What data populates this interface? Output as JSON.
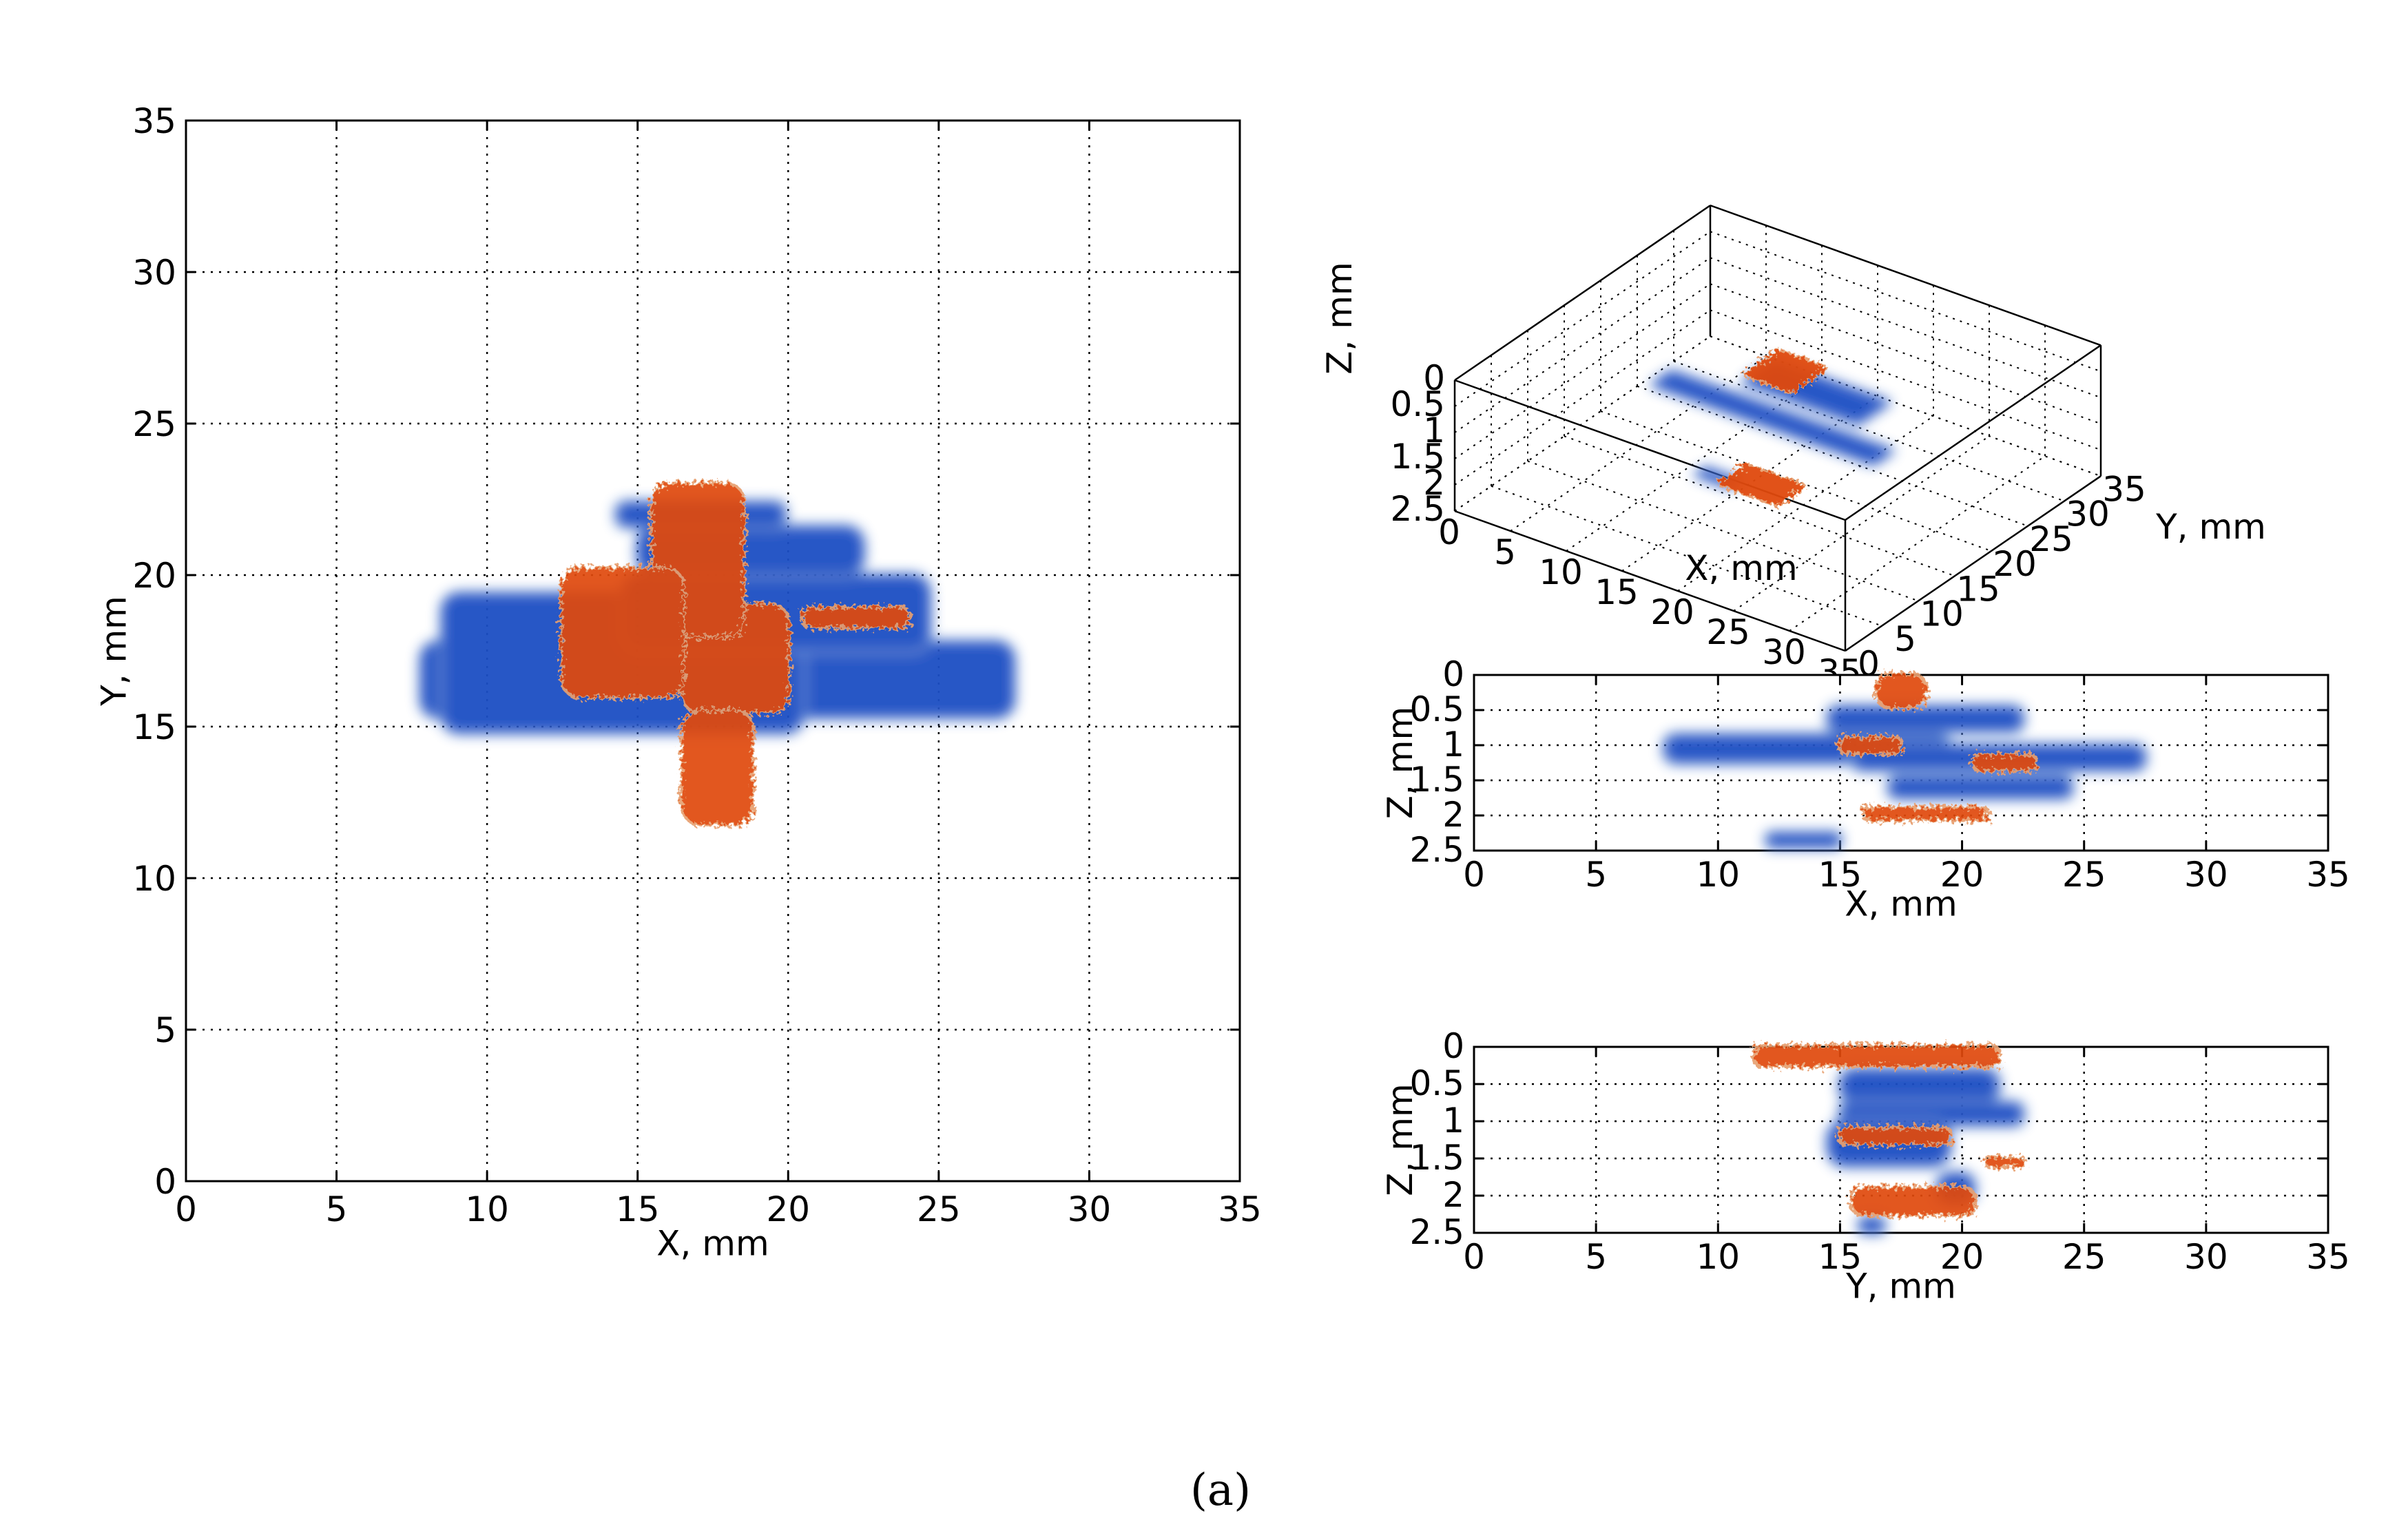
{
  "figure": {
    "caption": "(a)"
  },
  "colors": {
    "blue": "#1a4fc4",
    "blue_light": "#6f9ad9",
    "orange": "#e04a10",
    "orange_light": "#e8a070"
  },
  "chart_data": [
    {
      "id": "xy",
      "type": "heatmap",
      "title": "",
      "xlabel": "X, mm",
      "ylabel": "Y, mm",
      "xlim": [
        0,
        35
      ],
      "ylim": [
        0,
        35
      ],
      "xticks": [
        "0",
        "5",
        "10",
        "15",
        "20",
        "25",
        "30",
        "35"
      ],
      "yticks": [
        "0",
        "5",
        "10",
        "15",
        "20",
        "25",
        "30",
        "35"
      ],
      "grid": true,
      "series": [
        {
          "color": "blue",
          "regions": [
            {
              "x": [
                7.8,
                27.5
              ],
              "y": [
                15.3,
                17.8
              ]
            },
            {
              "x": [
                8.5,
                20.5
              ],
              "y": [
                14.8,
                19.4
              ]
            },
            {
              "x": [
                14.5,
                24.7
              ],
              "y": [
                17.5,
                20.0
              ]
            },
            {
              "x": [
                15.0,
                22.5
              ],
              "y": [
                20.0,
                21.6
              ]
            },
            {
              "x": [
                14.3,
                19.9
              ],
              "y": [
                21.6,
                22.4
              ]
            }
          ]
        },
        {
          "color": "orange",
          "regions": [
            {
              "x": [
                16.5,
                20.0
              ],
              "y": [
                15.5,
                19.0
              ]
            },
            {
              "x": [
                15.5,
                18.5
              ],
              "y": [
                18.0,
                23.0
              ]
            },
            {
              "x": [
                16.5,
                18.8
              ],
              "y": [
                11.8,
                15.5
              ]
            },
            {
              "x": [
                12.5,
                16.5
              ],
              "y": [
                16.0,
                20.2
              ]
            },
            {
              "x": [
                20.5,
                24.0
              ],
              "y": [
                18.3,
                18.9
              ]
            }
          ]
        }
      ]
    },
    {
      "id": "xyz-3d",
      "type": "scatter",
      "title": "",
      "xlabel": "X, mm",
      "ylabel": "Y, mm",
      "zlabel": "Z, mm",
      "xlim": [
        0,
        35
      ],
      "ylim": [
        0,
        35
      ],
      "zlim": [
        0,
        2.5
      ],
      "xticks": [
        "0",
        "5",
        "10",
        "15",
        "20",
        "25",
        "30",
        "35"
      ],
      "yticks": [
        "0",
        "5",
        "10",
        "15",
        "20",
        "25",
        "30",
        "35"
      ],
      "zticks": [
        "0",
        "0.5",
        "1",
        "1.5",
        "2",
        "2.5"
      ],
      "grid": true,
      "series": [
        {
          "color": "blue",
          "regions": [
            {
              "x": [
                7.8,
                27.5
              ],
              "y": [
                15.3,
                17.8
              ],
              "z": [
                0.8,
                1.1
              ]
            },
            {
              "x": [
                14.5,
                24.7
              ],
              "y": [
                17.5,
                21.6
              ],
              "z": [
                0.4,
                0.8
              ]
            },
            {
              "x": [
                12.0,
                15.0
              ],
              "y": [
                14.8,
                16.0
              ],
              "z": [
                2.2,
                2.4
              ]
            }
          ]
        },
        {
          "color": "orange",
          "regions": [
            {
              "x": [
                16.0,
                20.0
              ],
              "y": [
                15.5,
                20.0
              ],
              "z": [
                0.0,
                0.3
              ]
            },
            {
              "x": [
                16.0,
                21.0
              ],
              "y": [
                12.0,
                15.5
              ],
              "z": [
                1.8,
                2.0
              ]
            }
          ]
        }
      ]
    },
    {
      "id": "xz",
      "type": "heatmap",
      "title": "",
      "xlabel": "X, mm",
      "ylabel": "Z, mm",
      "xlim": [
        0,
        35
      ],
      "ylim": [
        0,
        2.5
      ],
      "y_inverted": true,
      "xticks": [
        "0",
        "5",
        "10",
        "15",
        "20",
        "25",
        "30",
        "35"
      ],
      "yticks": [
        "0",
        "0.5",
        "1",
        "1.5",
        "2",
        "2.5"
      ],
      "grid": true,
      "series": [
        {
          "color": "blue",
          "regions": [
            {
              "x": [
                7.8,
                19.5
              ],
              "y": [
                0.85,
                1.25
              ]
            },
            {
              "x": [
                15.5,
                27.5
              ],
              "y": [
                1.0,
                1.35
              ]
            },
            {
              "x": [
                14.5,
                22.5
              ],
              "y": [
                0.45,
                0.8
              ]
            },
            {
              "x": [
                17.0,
                24.5
              ],
              "y": [
                1.45,
                1.75
              ]
            },
            {
              "x": [
                12.0,
                15.0
              ],
              "y": [
                2.25,
                2.45
              ]
            }
          ]
        },
        {
          "color": "orange",
          "regions": [
            {
              "x": [
                16.5,
                18.5
              ],
              "y": [
                0.0,
                0.45
              ]
            },
            {
              "x": [
                15.0,
                17.5
              ],
              "y": [
                0.9,
                1.1
              ]
            },
            {
              "x": [
                20.5,
                23.0
              ],
              "y": [
                1.15,
                1.35
              ]
            },
            {
              "x": [
                16.0,
                21.0
              ],
              "y": [
                1.9,
                2.05
              ]
            }
          ]
        }
      ]
    },
    {
      "id": "yz",
      "type": "heatmap",
      "title": "",
      "xlabel": "Y, mm",
      "ylabel": "Z, mm",
      "xlim": [
        0,
        35
      ],
      "ylim": [
        0,
        2.5
      ],
      "y_inverted": true,
      "xticks": [
        "0",
        "5",
        "10",
        "15",
        "20",
        "25",
        "30",
        "35"
      ],
      "yticks": [
        "0",
        "0.5",
        "1",
        "1.5",
        "2",
        "2.5"
      ],
      "grid": true,
      "series": [
        {
          "color": "blue",
          "regions": [
            {
              "x": [
                15.0,
                21.5
              ],
              "y": [
                0.3,
                0.75
              ]
            },
            {
              "x": [
                15.0,
                22.5
              ],
              "y": [
                0.75,
                1.05
              ]
            },
            {
              "x": [
                14.5,
                19.5
              ],
              "y": [
                1.0,
                1.6
              ]
            },
            {
              "x": [
                19.0,
                20.5
              ],
              "y": [
                1.7,
                2.1
              ]
            },
            {
              "x": [
                15.8,
                16.8
              ],
              "y": [
                2.3,
                2.5
              ]
            }
          ]
        },
        {
          "color": "orange",
          "regions": [
            {
              "x": [
                11.5,
                21.5
              ],
              "y": [
                0.0,
                0.25
              ]
            },
            {
              "x": [
                15.0,
                19.5
              ],
              "y": [
                1.1,
                1.3
              ]
            },
            {
              "x": [
                15.5,
                20.5
              ],
              "y": [
                1.9,
                2.25
              ]
            },
            {
              "x": [
                21.0,
                22.5
              ],
              "y": [
                1.5,
                1.6
              ]
            }
          ]
        }
      ]
    }
  ]
}
